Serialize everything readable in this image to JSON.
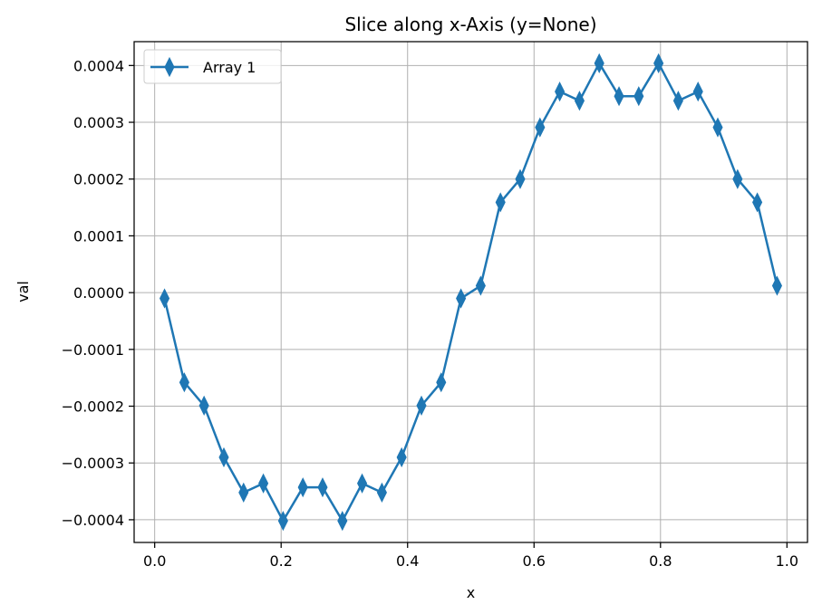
{
  "chart_data": {
    "type": "line",
    "title": "Slice along x-Axis (y=None)",
    "xlabel": "x",
    "ylabel": "val",
    "xlim": [
      -0.0325,
      1.0325
    ],
    "ylim": [
      -0.00044,
      0.000442
    ],
    "xticks": [
      0.0,
      0.2,
      0.4,
      0.6,
      0.8,
      1.0
    ],
    "xtick_labels": [
      "0.0",
      "0.2",
      "0.4",
      "0.6",
      "0.8",
      "1.0"
    ],
    "yticks": [
      -0.0004,
      -0.0003,
      -0.0002,
      -0.0001,
      0.0,
      0.0001,
      0.0002,
      0.0003,
      0.0004
    ],
    "ytick_labels": [
      "−0.0004",
      "−0.0003",
      "−0.0002",
      "−0.0001",
      "0.0000",
      "0.0001",
      "0.0002",
      "0.0003",
      "0.0004"
    ],
    "grid": true,
    "legend_position": "top-left",
    "series": [
      {
        "name": "Array 1",
        "color": "#1f77b4",
        "marker": "thin-diamond",
        "x": [
          0.0156,
          0.0469,
          0.0781,
          0.1094,
          0.1406,
          0.1719,
          0.2031,
          0.2344,
          0.2656,
          0.2969,
          0.3281,
          0.3594,
          0.3906,
          0.4219,
          0.4531,
          0.4844,
          0.5156,
          0.5469,
          0.5781,
          0.6094,
          0.6406,
          0.6719,
          0.7031,
          0.7344,
          0.7656,
          0.7969,
          0.8281,
          0.8594,
          0.8906,
          0.9219,
          0.9531,
          0.9844
        ],
        "y": [
          -1.02e-05,
          -0.000158,
          -0.000199,
          -0.00029,
          -0.000352,
          -0.000336,
          -0.000402,
          -0.000343,
          -0.000343,
          -0.000402,
          -0.000336,
          -0.000352,
          -0.00029,
          -0.000199,
          -0.000158,
          -1.02e-05,
          1.21e-05,
          0.000159,
          0.0002,
          0.000291,
          0.000354,
          0.000338,
          0.000404,
          0.000346,
          0.000346,
          0.000404,
          0.000338,
          0.000354,
          0.000291,
          0.0002,
          0.000159,
          1.21e-05
        ]
      }
    ]
  }
}
